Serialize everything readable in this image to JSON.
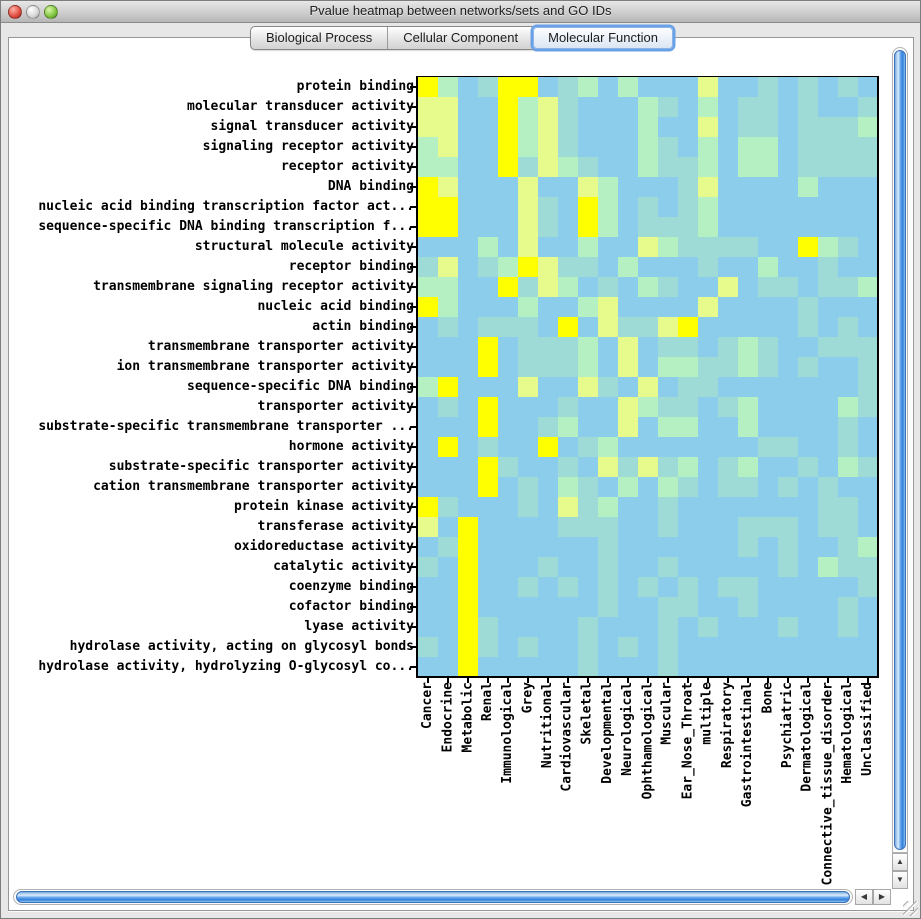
{
  "window": {
    "title": "Pvalue heatmap between networks/sets and GO IDs",
    "traffic_lights": [
      "close",
      "minimize",
      "zoom"
    ]
  },
  "tabs": [
    {
      "label": "Biological Process",
      "selected": false
    },
    {
      "label": "Cellular Component",
      "selected": false
    },
    {
      "label": "Molecular Function",
      "selected": true
    }
  ],
  "icons": {
    "scroll_up": "▲",
    "scroll_down": "▼",
    "scroll_left": "◀",
    "scroll_right": "▶"
  },
  "chart_data": {
    "type": "heatmap",
    "title": "Pvalue heatmap between networks/sets and GO IDs",
    "tab_shown": "Molecular Function",
    "columns": [
      "Cancer",
      "Endocrine",
      "Metabolic",
      "Renal",
      "Immunological",
      "Grey",
      "Nutritional",
      "Cardiovascular",
      "Skeletal",
      "Developmental",
      "Neurological",
      "Ophthamological",
      "Muscular",
      "Ear_Nose_Throat",
      "multiple",
      "Respiratory",
      "Gastrointestinal",
      "Bone",
      "Psychiatric",
      "Dermatological",
      "Connective_tissue_disorder",
      "Hematological",
      "Unclassified"
    ],
    "rows": [
      "protein binding",
      "molecular transducer activity",
      "signal transducer activity",
      "signaling receptor activity",
      "receptor activity",
      "DNA binding",
      "nucleic acid binding transcription factor act...",
      "sequence-specific DNA binding transcription f...",
      "structural molecule activity",
      "receptor binding",
      "transmembrane signaling receptor activity",
      "nucleic acid binding",
      "actin binding",
      "transmembrane transporter activity",
      "ion transmembrane transporter activity",
      "sequence-specific DNA binding",
      "transporter activity",
      "substrate-specific transmembrane transporter ...",
      "hormone activity",
      "substrate-specific transporter activity",
      "cation transmembrane transporter activity",
      "protein kinase activity",
      "transferase activity",
      "oxidoreductase activity",
      "catalytic activity",
      "coenzyme binding",
      "cofactor binding",
      "lyase activity",
      "hydrolase activity, acting on glycosyl bonds",
      "hydrolase activity, hydrolyzing O-glycosyl co..."
    ],
    "palette": [
      "#8DCDEC",
      "#9FDBD6",
      "#B4F0C2",
      "#E6FB8B",
      "#FFFF00"
    ],
    "palette_note": "color level per cell: 0=light blue (least significant p-value) to 4=bright yellow (most significant)",
    "x_tick_rotation": 90,
    "grid": false,
    "legend_position": "none",
    "values": [
      [
        4,
        2,
        0,
        1,
        4,
        4,
        0,
        1,
        2,
        0,
        2,
        0,
        0,
        0,
        3,
        0,
        0,
        1,
        0,
        1,
        0,
        1,
        0
      ],
      [
        3,
        3,
        0,
        0,
        4,
        2,
        3,
        1,
        0,
        0,
        0,
        2,
        1,
        0,
        2,
        0,
        1,
        1,
        0,
        1,
        0,
        0,
        1
      ],
      [
        3,
        3,
        0,
        0,
        4,
        2,
        3,
        1,
        0,
        0,
        0,
        2,
        0,
        0,
        3,
        0,
        1,
        1,
        0,
        1,
        1,
        1,
        2
      ],
      [
        2,
        3,
        0,
        0,
        4,
        2,
        3,
        1,
        0,
        0,
        0,
        2,
        1,
        0,
        2,
        0,
        2,
        2,
        0,
        1,
        1,
        1,
        1
      ],
      [
        2,
        2,
        0,
        0,
        4,
        1,
        3,
        2,
        1,
        0,
        0,
        2,
        1,
        1,
        2,
        0,
        2,
        2,
        0,
        1,
        1,
        1,
        1
      ],
      [
        4,
        3,
        0,
        0,
        0,
        3,
        0,
        0,
        3,
        2,
        0,
        0,
        0,
        1,
        3,
        0,
        0,
        0,
        0,
        2,
        0,
        0,
        0
      ],
      [
        4,
        4,
        0,
        0,
        0,
        3,
        1,
        0,
        4,
        2,
        0,
        1,
        0,
        1,
        2,
        0,
        0,
        0,
        0,
        0,
        0,
        0,
        0
      ],
      [
        4,
        4,
        0,
        0,
        0,
        3,
        1,
        0,
        4,
        2,
        0,
        1,
        1,
        1,
        2,
        0,
        0,
        0,
        0,
        0,
        0,
        0,
        0
      ],
      [
        0,
        0,
        0,
        2,
        0,
        3,
        0,
        0,
        2,
        0,
        0,
        3,
        2,
        1,
        1,
        1,
        1,
        0,
        0,
        4,
        2,
        1,
        0
      ],
      [
        1,
        3,
        0,
        1,
        2,
        4,
        3,
        1,
        1,
        0,
        2,
        0,
        0,
        0,
        1,
        0,
        0,
        2,
        0,
        0,
        1,
        0,
        0
      ],
      [
        2,
        2,
        0,
        0,
        4,
        1,
        3,
        2,
        0,
        1,
        0,
        2,
        1,
        0,
        0,
        3,
        0,
        1,
        1,
        0,
        1,
        1,
        2
      ],
      [
        4,
        2,
        0,
        0,
        0,
        2,
        0,
        0,
        2,
        3,
        0,
        0,
        0,
        0,
        3,
        0,
        0,
        0,
        0,
        1,
        0,
        0,
        0
      ],
      [
        0,
        1,
        0,
        1,
        1,
        1,
        0,
        4,
        0,
        3,
        1,
        1,
        3,
        4,
        0,
        0,
        0,
        0,
        0,
        1,
        0,
        1,
        0
      ],
      [
        0,
        0,
        0,
        4,
        0,
        1,
        1,
        1,
        2,
        0,
        3,
        0,
        1,
        1,
        0,
        1,
        2,
        1,
        0,
        0,
        1,
        1,
        1
      ],
      [
        0,
        0,
        0,
        4,
        0,
        1,
        1,
        1,
        2,
        0,
        3,
        0,
        2,
        2,
        1,
        1,
        2,
        1,
        0,
        1,
        0,
        0,
        1
      ],
      [
        2,
        4,
        0,
        0,
        0,
        3,
        0,
        0,
        3,
        1,
        0,
        3,
        0,
        1,
        1,
        0,
        0,
        0,
        0,
        0,
        0,
        0,
        1
      ],
      [
        0,
        1,
        0,
        4,
        0,
        0,
        0,
        1,
        0,
        0,
        3,
        2,
        1,
        1,
        0,
        1,
        2,
        0,
        0,
        0,
        0,
        2,
        1
      ],
      [
        0,
        0,
        0,
        4,
        0,
        0,
        1,
        2,
        0,
        0,
        3,
        0,
        2,
        2,
        0,
        0,
        2,
        0,
        0,
        0,
        0,
        1,
        0
      ],
      [
        0,
        4,
        0,
        1,
        0,
        0,
        4,
        0,
        1,
        2,
        0,
        0,
        0,
        0,
        0,
        0,
        0,
        1,
        1,
        0,
        0,
        1,
        0
      ],
      [
        0,
        0,
        0,
        4,
        1,
        0,
        0,
        1,
        0,
        3,
        1,
        3,
        1,
        2,
        0,
        1,
        2,
        0,
        0,
        1,
        0,
        2,
        1
      ],
      [
        0,
        0,
        0,
        4,
        0,
        1,
        0,
        2,
        1,
        0,
        2,
        0,
        2,
        1,
        0,
        1,
        1,
        0,
        1,
        0,
        1,
        0,
        0
      ],
      [
        4,
        1,
        0,
        0,
        0,
        1,
        0,
        3,
        1,
        2,
        0,
        0,
        1,
        0,
        0,
        0,
        0,
        0,
        0,
        0,
        1,
        1,
        0
      ],
      [
        3,
        0,
        4,
        0,
        0,
        0,
        0,
        1,
        1,
        1,
        0,
        0,
        1,
        0,
        0,
        0,
        1,
        1,
        1,
        0,
        1,
        1,
        0
      ],
      [
        0,
        1,
        4,
        0,
        0,
        0,
        0,
        0,
        0,
        1,
        0,
        0,
        0,
        0,
        0,
        0,
        1,
        0,
        1,
        0,
        0,
        1,
        2
      ],
      [
        1,
        0,
        4,
        0,
        0,
        0,
        1,
        0,
        0,
        1,
        0,
        0,
        1,
        0,
        0,
        0,
        0,
        0,
        1,
        0,
        2,
        1,
        1
      ],
      [
        0,
        0,
        4,
        0,
        0,
        1,
        0,
        1,
        0,
        1,
        0,
        1,
        0,
        1,
        0,
        1,
        1,
        0,
        0,
        0,
        0,
        0,
        1
      ],
      [
        0,
        0,
        4,
        0,
        0,
        0,
        0,
        0,
        0,
        1,
        0,
        0,
        1,
        1,
        0,
        0,
        1,
        0,
        0,
        0,
        0,
        1,
        0
      ],
      [
        0,
        0,
        4,
        1,
        0,
        0,
        0,
        0,
        1,
        0,
        0,
        0,
        1,
        0,
        1,
        0,
        0,
        0,
        1,
        0,
        0,
        1,
        0
      ],
      [
        1,
        0,
        4,
        1,
        0,
        1,
        0,
        0,
        1,
        0,
        1,
        0,
        1,
        0,
        0,
        0,
        0,
        0,
        0,
        0,
        0,
        0,
        0
      ],
      [
        0,
        0,
        4,
        0,
        0,
        0,
        0,
        0,
        1,
        0,
        0,
        0,
        1,
        0,
        0,
        0,
        0,
        0,
        0,
        0,
        0,
        0,
        0
      ]
    ]
  }
}
